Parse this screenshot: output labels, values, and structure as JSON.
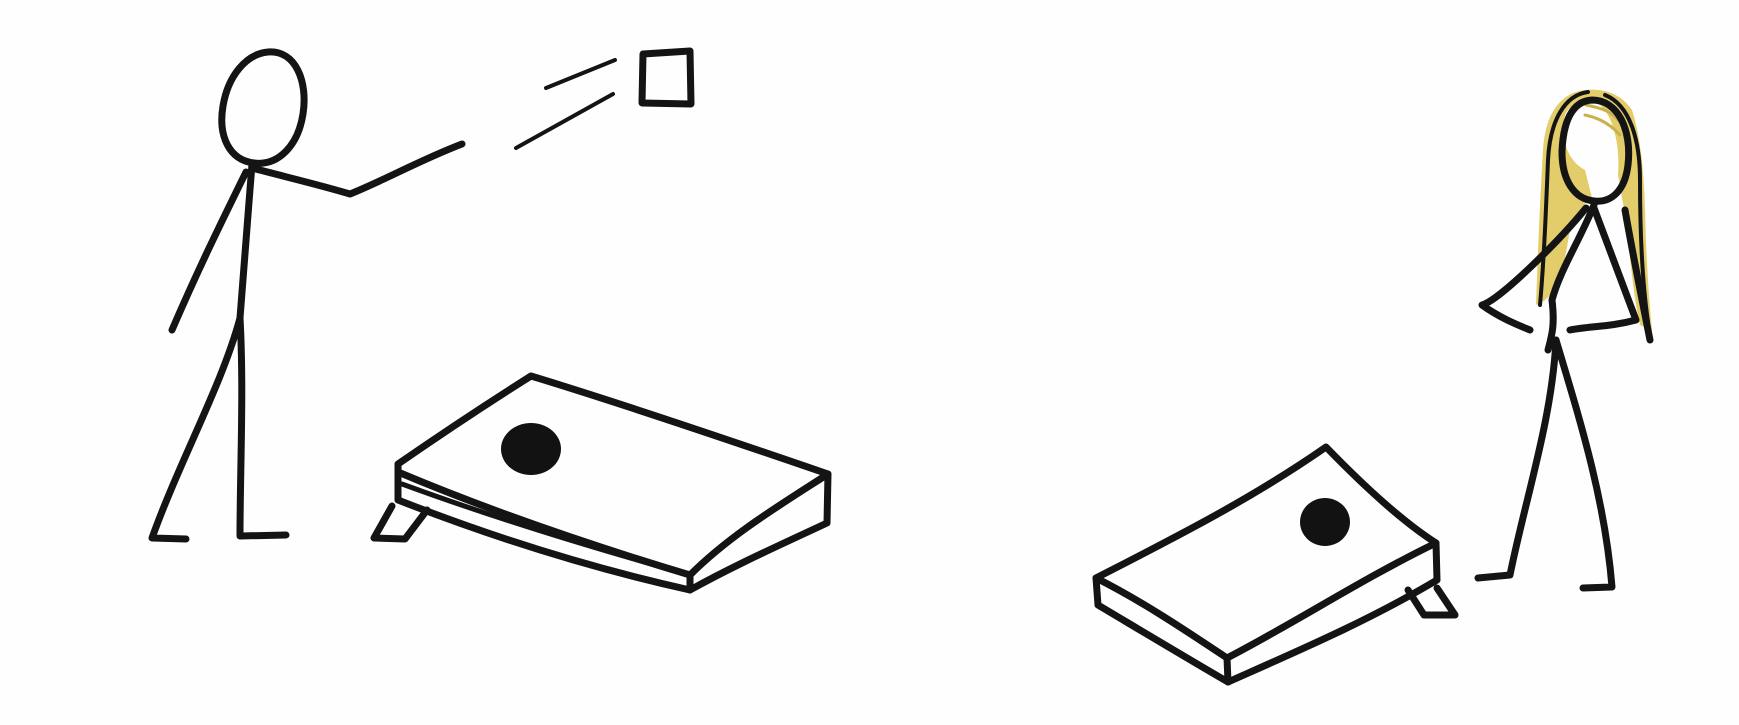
{
  "colors": {
    "background": "#fefefe",
    "ink": "#141414",
    "hair": "#e2cd6a",
    "board_hole": "#121212"
  },
  "scene": {
    "figures": [
      {
        "name": "thrower",
        "icon": "stick-figure-icon",
        "action": "throwing"
      },
      {
        "name": "woman-with-blonde-hair",
        "icon": "stick-figure-icon",
        "action": "standing-hand-on-hip"
      }
    ],
    "objects": [
      {
        "name": "bean-bag",
        "icon": "square-icon"
      },
      {
        "name": "cornhole-board-near",
        "icon": "board-icon"
      },
      {
        "name": "cornhole-board-far",
        "icon": "board-icon"
      }
    ]
  }
}
